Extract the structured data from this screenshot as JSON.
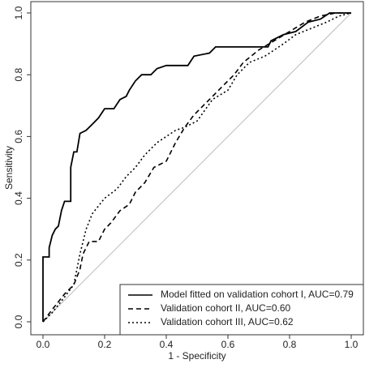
{
  "chart_data": {
    "type": "line",
    "xlabel": "1 - Specificity",
    "ylabel": "Sensitivity",
    "xlim": [
      0,
      1
    ],
    "ylim": [
      0,
      1
    ],
    "xticks": [
      {
        "value": 0,
        "label": "0.0"
      },
      0.2,
      0.4,
      0.6,
      0.8,
      {
        "value": 1,
        "label": "1.0"
      }
    ],
    "yticks": [
      {
        "value": 0,
        "label": "0.0"
      },
      0.2,
      0.4,
      0.6,
      0.8,
      {
        "value": 1,
        "label": "1.0"
      }
    ],
    "reference_diagonal": true,
    "legend": "lower right",
    "series": [
      {
        "name": "Model fitted on validation cohort I, AUC=0.79",
        "color": "#000000",
        "dash": "solid",
        "x": [
          0,
          0,
          0.02,
          0.02,
          0.03,
          0.04,
          0.05,
          0.06,
          0.07,
          0.09,
          0.09,
          0.1,
          0.11,
          0.12,
          0.14,
          0.16,
          0.18,
          0.2,
          0.23,
          0.25,
          0.27,
          0.28,
          0.3,
          0.32,
          0.35,
          0.37,
          0.4,
          0.47,
          0.49,
          0.54,
          0.56,
          0.73,
          0.74,
          0.78,
          0.82,
          0.86,
          0.9,
          0.93,
          1
        ],
        "values": [
          0,
          0.21,
          0.21,
          0.24,
          0.28,
          0.3,
          0.31,
          0.36,
          0.39,
          0.39,
          0.5,
          0.55,
          0.55,
          0.61,
          0.62,
          0.64,
          0.66,
          0.69,
          0.69,
          0.72,
          0.73,
          0.75,
          0.78,
          0.8,
          0.8,
          0.82,
          0.83,
          0.83,
          0.86,
          0.87,
          0.89,
          0.89,
          0.91,
          0.93,
          0.94,
          0.97,
          0.98,
          1,
          1
        ]
      },
      {
        "name": "Validation cohort II, AUC=0.60",
        "color": "#000000",
        "dash": "dashed",
        "x": [
          0,
          0.03,
          0.07,
          0.1,
          0.12,
          0.13,
          0.15,
          0.18,
          0.2,
          0.22,
          0.25,
          0.28,
          0.3,
          0.33,
          0.36,
          0.4,
          0.43,
          0.46,
          0.49,
          0.52,
          0.55,
          0.58,
          0.62,
          0.65,
          0.7,
          0.75,
          0.8,
          0.85,
          0.9,
          0.95,
          1
        ],
        "values": [
          0,
          0.04,
          0.09,
          0.12,
          0.17,
          0.22,
          0.26,
          0.26,
          0.3,
          0.32,
          0.36,
          0.38,
          0.42,
          0.45,
          0.5,
          0.52,
          0.58,
          0.63,
          0.67,
          0.7,
          0.73,
          0.76,
          0.8,
          0.84,
          0.88,
          0.91,
          0.94,
          0.97,
          0.99,
          1,
          1
        ]
      },
      {
        "name": "Validation cohort III, AUC=0.62",
        "color": "#000000",
        "dash": "dotted",
        "x": [
          0,
          0.03,
          0.07,
          0.1,
          0.12,
          0.14,
          0.16,
          0.2,
          0.24,
          0.27,
          0.3,
          0.33,
          0.37,
          0.4,
          0.43,
          0.46,
          0.5,
          0.55,
          0.6,
          0.63,
          0.67,
          0.72,
          0.78,
          0.82,
          0.87,
          0.92,
          0.96,
          1
        ],
        "values": [
          0,
          0.03,
          0.08,
          0.12,
          0.22,
          0.3,
          0.35,
          0.4,
          0.43,
          0.47,
          0.5,
          0.54,
          0.58,
          0.6,
          0.62,
          0.63,
          0.65,
          0.72,
          0.75,
          0.8,
          0.84,
          0.86,
          0.9,
          0.93,
          0.95,
          0.97,
          0.99,
          1
        ]
      }
    ]
  }
}
